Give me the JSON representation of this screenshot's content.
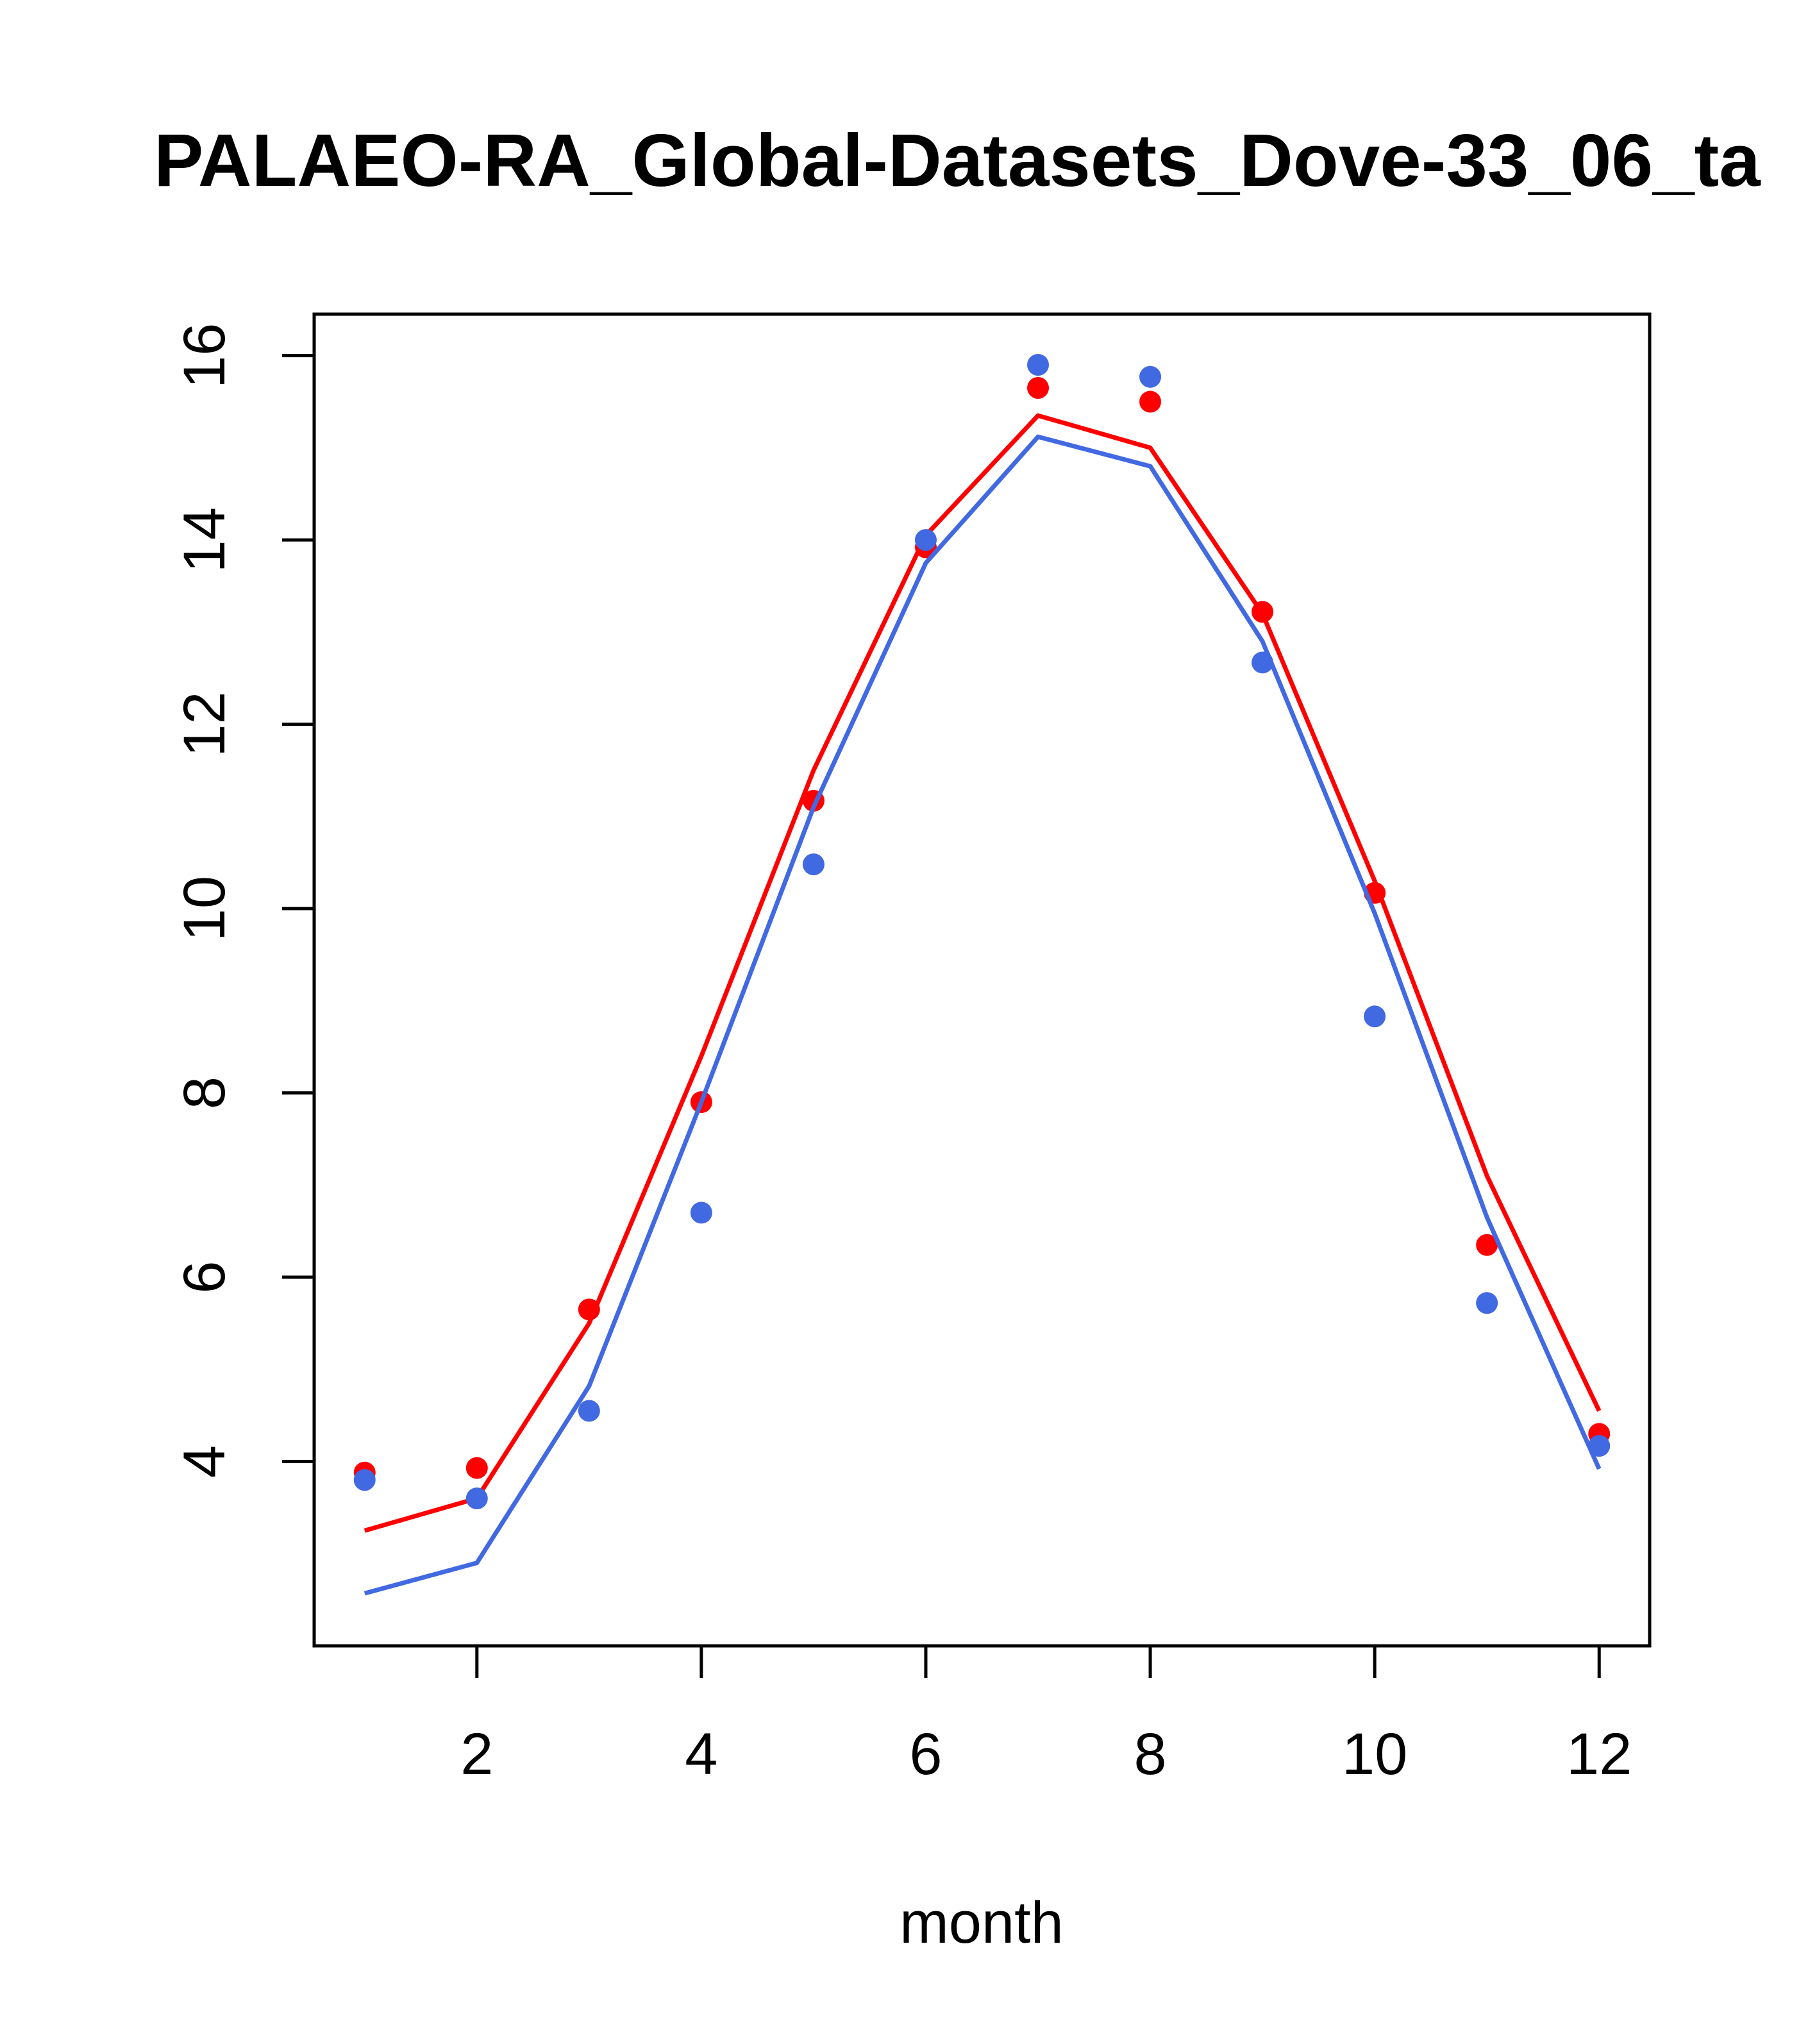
{
  "chart_data": {
    "type": "scatter",
    "title": "PALAEO-RA_Global-Datasets_Dove-33_06_ta",
    "xlabel": "month",
    "ylabel": "",
    "xlim": [
      0.55,
      12.45
    ],
    "ylim": [
      2.0,
      16.45
    ],
    "xticks": [
      2,
      4,
      6,
      8,
      10,
      12
    ],
    "yticks": [
      4,
      6,
      8,
      10,
      12,
      14,
      16
    ],
    "grid": false,
    "legend": "none",
    "series": [
      {
        "color": "#ff0000",
        "points_y": [
          3.88,
          3.93,
          5.65,
          7.9,
          11.17,
          13.92,
          15.65,
          15.5,
          13.22,
          10.17,
          6.35,
          4.3
        ],
        "line_y": [
          3.25,
          3.6,
          5.5,
          8.4,
          11.5,
          14.05,
          15.35,
          15.0,
          13.2,
          10.3,
          7.1,
          4.55
        ]
      },
      {
        "color": "#4169e1",
        "points_y": [
          3.8,
          3.6,
          4.55,
          6.7,
          10.48,
          14.0,
          15.9,
          15.77,
          12.67,
          8.83,
          5.72,
          4.17
        ],
        "line_y": [
          2.57,
          2.9,
          4.82,
          7.9,
          11.1,
          13.75,
          15.12,
          14.8,
          12.9,
          9.95,
          6.65,
          3.92
        ]
      }
    ],
    "x": [
      1,
      2,
      3,
      4,
      5,
      6,
      7,
      8,
      9,
      10,
      11,
      12
    ]
  }
}
